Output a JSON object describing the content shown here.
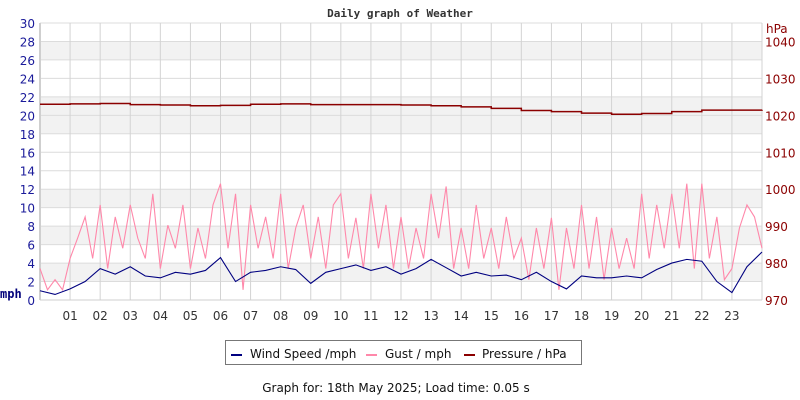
{
  "chart_data": {
    "type": "line",
    "title": "Daily graph of Weather",
    "left_axis": {
      "unit_label": "mph",
      "ylim": [
        0,
        30
      ],
      "ticks": [
        0,
        2,
        4,
        6,
        8,
        10,
        12,
        14,
        16,
        18,
        20,
        22,
        24,
        26,
        28,
        30
      ]
    },
    "right_axis": {
      "unit_label": "hPa",
      "ylim": [
        970,
        1045
      ],
      "ticks": [
        970,
        980,
        990,
        1000,
        1010,
        1020,
        1030,
        1040
      ]
    },
    "x_axis": {
      "unit": "hour",
      "xlim": [
        0,
        24
      ],
      "tick_labels": [
        "01",
        "02",
        "03",
        "04",
        "05",
        "06",
        "07",
        "08",
        "09",
        "10",
        "11",
        "12",
        "13",
        "14",
        "15",
        "16",
        "17",
        "18",
        "19",
        "20",
        "21",
        "22",
        "23"
      ]
    },
    "grid": true,
    "shaded_bands_mph": [
      [
        2,
        4
      ],
      [
        6,
        8
      ],
      [
        10,
        12
      ],
      [
        18,
        22
      ],
      [
        26,
        28
      ]
    ],
    "legend_position": "bottom",
    "series": [
      {
        "name": "Wind Speed /mph",
        "axis": "left",
        "color": "#000080",
        "x_step_hours": 0.5,
        "values": [
          1.0,
          0.6,
          1.2,
          2.0,
          3.4,
          2.8,
          3.6,
          2.6,
          2.4,
          3.0,
          2.8,
          3.2,
          4.6,
          2.0,
          3.0,
          3.2,
          3.6,
          3.3,
          1.8,
          3.0,
          3.4,
          3.8,
          3.2,
          3.6,
          2.8,
          3.4,
          4.4,
          3.5,
          2.6,
          3.0,
          2.6,
          2.7,
          2.2,
          3.0,
          2.0,
          1.2,
          2.6,
          2.4,
          2.4,
          2.6,
          2.4,
          3.3,
          4.0,
          4.4,
          4.2,
          2.0,
          0.8,
          3.6,
          5.2
        ]
      },
      {
        "name": "Gust / mph",
        "axis": "left",
        "color": "#ff88aa",
        "x_step_hours": 0.25,
        "values": [
          3.4,
          1.1,
          2.2,
          1.1,
          4.5,
          6.7,
          9.0,
          4.5,
          10.3,
          3.4,
          9.0,
          5.6,
          10.3,
          6.7,
          4.5,
          11.5,
          3.4,
          8.1,
          5.6,
          10.3,
          3.4,
          7.8,
          4.5,
          10.3,
          12.6,
          5.6,
          11.5,
          1.1,
          10.3,
          5.6,
          9.0,
          4.5,
          11.5,
          3.4,
          7.8,
          10.3,
          4.5,
          9.0,
          3.4,
          10.3,
          11.5,
          4.5,
          8.9,
          3.4,
          11.5,
          5.6,
          10.3,
          3.4,
          9.0,
          3.4,
          7.8,
          4.5,
          11.5,
          6.7,
          12.3,
          3.4,
          7.8,
          3.4,
          10.3,
          4.5,
          7.8,
          3.4,
          9.0,
          4.5,
          6.7,
          2.2,
          7.8,
          3.4,
          8.9,
          1.1,
          7.8,
          3.4,
          10.3,
          3.4,
          9.0,
          2.2,
          7.8,
          3.4,
          6.7,
          3.4,
          11.5,
          4.5,
          10.3,
          5.6,
          11.5,
          5.6,
          12.6,
          3.4,
          12.6,
          4.5,
          9.0,
          2.2,
          3.4,
          7.8,
          10.3,
          9.0,
          5.6
        ]
      },
      {
        "name": "Pressure / hPa",
        "axis": "right",
        "color": "#8b0000",
        "x_step_hours": 1,
        "values": [
          1023.0,
          1023.1,
          1023.2,
          1022.9,
          1022.8,
          1022.6,
          1022.7,
          1023.0,
          1023.1,
          1022.9,
          1022.9,
          1022.9,
          1022.8,
          1022.6,
          1022.3,
          1021.9,
          1021.3,
          1021.0,
          1020.6,
          1020.3,
          1020.5,
          1021.0,
          1021.4,
          1021.4,
          1021.5
        ]
      }
    ]
  },
  "legend": {
    "items": [
      "Wind Speed /mph",
      "Gust / mph",
      "Pressure / hPa"
    ]
  },
  "footer": "Graph for: 18th May 2025; Load time: 0.05 s"
}
